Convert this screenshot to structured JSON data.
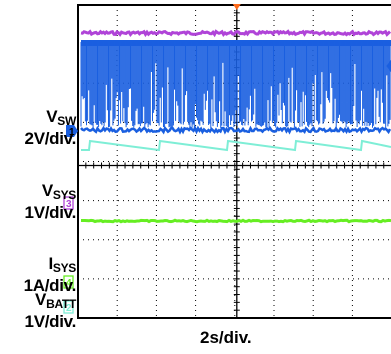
{
  "chart_data": {
    "type": "line",
    "title": "",
    "xlabel": "2s/div.",
    "grid": true,
    "channels": [
      {
        "marker": "1",
        "name": "V",
        "name_sub": "SW",
        "scale": "2V/div.",
        "color": "#1a5fe0"
      },
      {
        "marker": "3",
        "name": "V",
        "name_sub": "SYS",
        "scale": "1V/div.",
        "color": "#b044d8"
      },
      {
        "marker": "4",
        "name": "I",
        "name_sub": "SYS",
        "scale": "1A/div.",
        "color": "#66ee22"
      },
      {
        "marker": "2",
        "name": "V",
        "name_sub": "BATT",
        "scale": "1V/div.",
        "color": "#7eeed6"
      }
    ],
    "trigger_marker_color": "#ff6a1a",
    "divisions": {
      "x": 10,
      "y": 8
    }
  }
}
